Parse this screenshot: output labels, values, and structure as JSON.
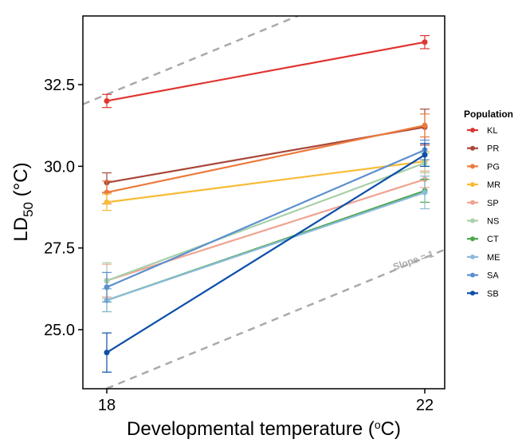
{
  "chart_data": {
    "type": "line",
    "x": [
      18,
      22
    ],
    "xlim": [
      18,
      22
    ],
    "ylim": [
      23.2,
      34.5
    ],
    "x_ticks": [
      "18",
      "22"
    ],
    "y_ticks": [
      "25.0",
      "27.5",
      "30.0",
      "32.5"
    ],
    "y_tick_values": [
      25.0,
      27.5,
      30.0,
      32.5
    ],
    "xlabel": "Developmental temperature (",
    "xlabel_degree": "o",
    "xlabel_unit": "C)",
    "ylabel": "LD",
    "ylabel_sub": "50",
    "ylabel_unit": " (°C)",
    "grid": false,
    "legend": {
      "title": "Population",
      "position": "right"
    },
    "annotation": {
      "text": "Slope = 1",
      "color": "#aaaaaa"
    },
    "reference_lines": [
      {
        "style": "dashed",
        "slope": 1,
        "intercept": 14.2,
        "color": "#aaaaaa"
      },
      {
        "style": "dashed",
        "slope": 1,
        "intercept": 5.2,
        "color": "#aaaaaa"
      }
    ],
    "series": [
      {
        "name": "KL",
        "color": "#e03530",
        "values": [
          32.0,
          33.8
        ],
        "errors": [
          0.2,
          0.2
        ]
      },
      {
        "name": "PR",
        "color": "#a8473a",
        "values": [
          29.5,
          31.2
        ],
        "errors": [
          0.3,
          0.55
        ]
      },
      {
        "name": "PG",
        "color": "#ec7a3c",
        "values": [
          29.2,
          31.25
        ],
        "errors": [
          0.35,
          0.35
        ]
      },
      {
        "name": "MR",
        "color": "#f8bb35",
        "values": [
          28.9,
          30.15
        ],
        "errors": [
          0.25,
          0.3
        ]
      },
      {
        "name": "SP",
        "color": "#f0a391",
        "values": [
          26.5,
          29.6
        ],
        "errors": [
          0.5,
          0.25
        ]
      },
      {
        "name": "NS",
        "color": "#a8d0a8",
        "values": [
          26.5,
          30.1
        ],
        "errors": [
          0.55,
          0.3
        ]
      },
      {
        "name": "CT",
        "color": "#4ca64c",
        "values": [
          25.9,
          29.25
        ],
        "errors": [
          0.35,
          0.35
        ]
      },
      {
        "name": "ME",
        "color": "#8bbbd8",
        "values": [
          25.9,
          29.2
        ],
        "errors": [
          0.35,
          0.5
        ]
      },
      {
        "name": "SA",
        "color": "#5b8fcf",
        "values": [
          26.3,
          30.5
        ],
        "errors": [
          0.45,
          0.3
        ]
      },
      {
        "name": "SB",
        "color": "#0b4fa8",
        "values": [
          24.3,
          30.35
        ],
        "errors": [
          0.6,
          0.35
        ]
      }
    ]
  }
}
